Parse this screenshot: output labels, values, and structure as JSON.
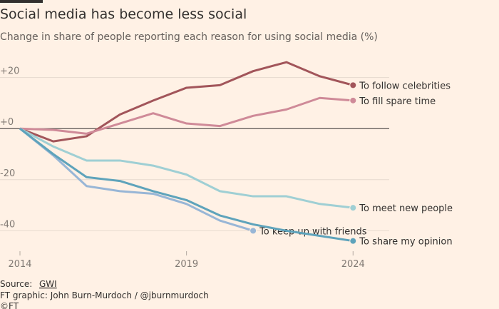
{
  "chart_data": {
    "type": "line",
    "title": "Social media has become less social",
    "subtitle": "Change in share of people reporting each reason for using social media (%)",
    "source_label": "Source:",
    "source": "GWI",
    "credit": "FT graphic: John Burn-Murdoch / @jburnmurdoch",
    "copyright": "©FT",
    "x": [
      2014,
      2015,
      2016,
      2017,
      2018,
      2019,
      2020,
      2021,
      2022,
      2023,
      2024
    ],
    "xlim": [
      2014,
      2025
    ],
    "xticks": [
      2014,
      2019,
      2024
    ],
    "ylim": [
      -48,
      28
    ],
    "yticks": [
      {
        "value": 20,
        "label": "+20"
      },
      {
        "value": 0,
        "label": "+0"
      },
      -20,
      -40
    ],
    "grid": true,
    "series": [
      {
        "name": "To follow celebrities",
        "color": "#a2555a",
        "values": [
          0,
          -5,
          -3,
          5.5,
          11,
          16,
          17,
          22.5,
          26,
          20.5,
          17
        ]
      },
      {
        "name": "To fill spare time",
        "color": "#cf8a98",
        "values": [
          0,
          -0.5,
          -2,
          2,
          6,
          2,
          1,
          5,
          7.5,
          12,
          11
        ]
      },
      {
        "name": "To meet new people",
        "color": "#9fcfd4",
        "values": [
          0,
          -7,
          -12.5,
          -12.5,
          -14.5,
          -18,
          -24.5,
          -26.5,
          -26.5,
          -29.5,
          -31
        ]
      },
      {
        "name": "To keep up with friends",
        "color": "#98b6d6",
        "values": [
          0,
          -10.5,
          -22.5,
          -24.5,
          -25.5,
          -29.5,
          -36,
          -40,
          null,
          null,
          null
        ]
      },
      {
        "name": "To share my opinion",
        "color": "#5ea3bb",
        "values": [
          0,
          -10,
          -19,
          -20.5,
          -24.5,
          -28,
          -34,
          -37.5,
          -40,
          -42,
          -44
        ]
      }
    ]
  }
}
